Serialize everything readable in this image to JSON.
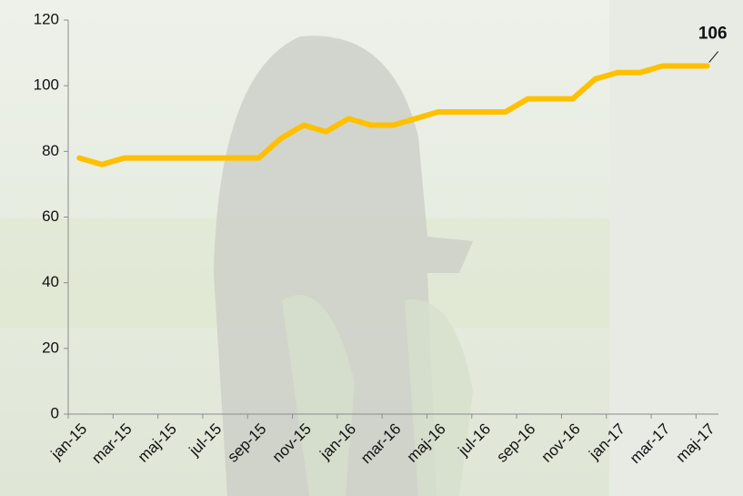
{
  "chart_data": {
    "type": "line",
    "categories": [
      "jan-15",
      null,
      "mar-15",
      null,
      "maj-15",
      null,
      "jul-15",
      null,
      "sep-15",
      null,
      "nov-15",
      null,
      "jan-16",
      null,
      "mar-16",
      null,
      "maj-16",
      null,
      "jul-16",
      null,
      "sep-16",
      null,
      "nov-16",
      null,
      "jan-17",
      null,
      "mar-17",
      null,
      "maj-17"
    ],
    "values": [
      78,
      76,
      78,
      78,
      78,
      78,
      78,
      78,
      78,
      84,
      88,
      86,
      90,
      88,
      88,
      90,
      92,
      92,
      92,
      92,
      96,
      96,
      96,
      102,
      104,
      104,
      106,
      106,
      106
    ],
    "color": "#ffc000",
    "ylim": [
      0,
      120
    ],
    "yticks": [
      0,
      20,
      40,
      60,
      80,
      100,
      120
    ],
    "grid": false,
    "label_last": true
  }
}
